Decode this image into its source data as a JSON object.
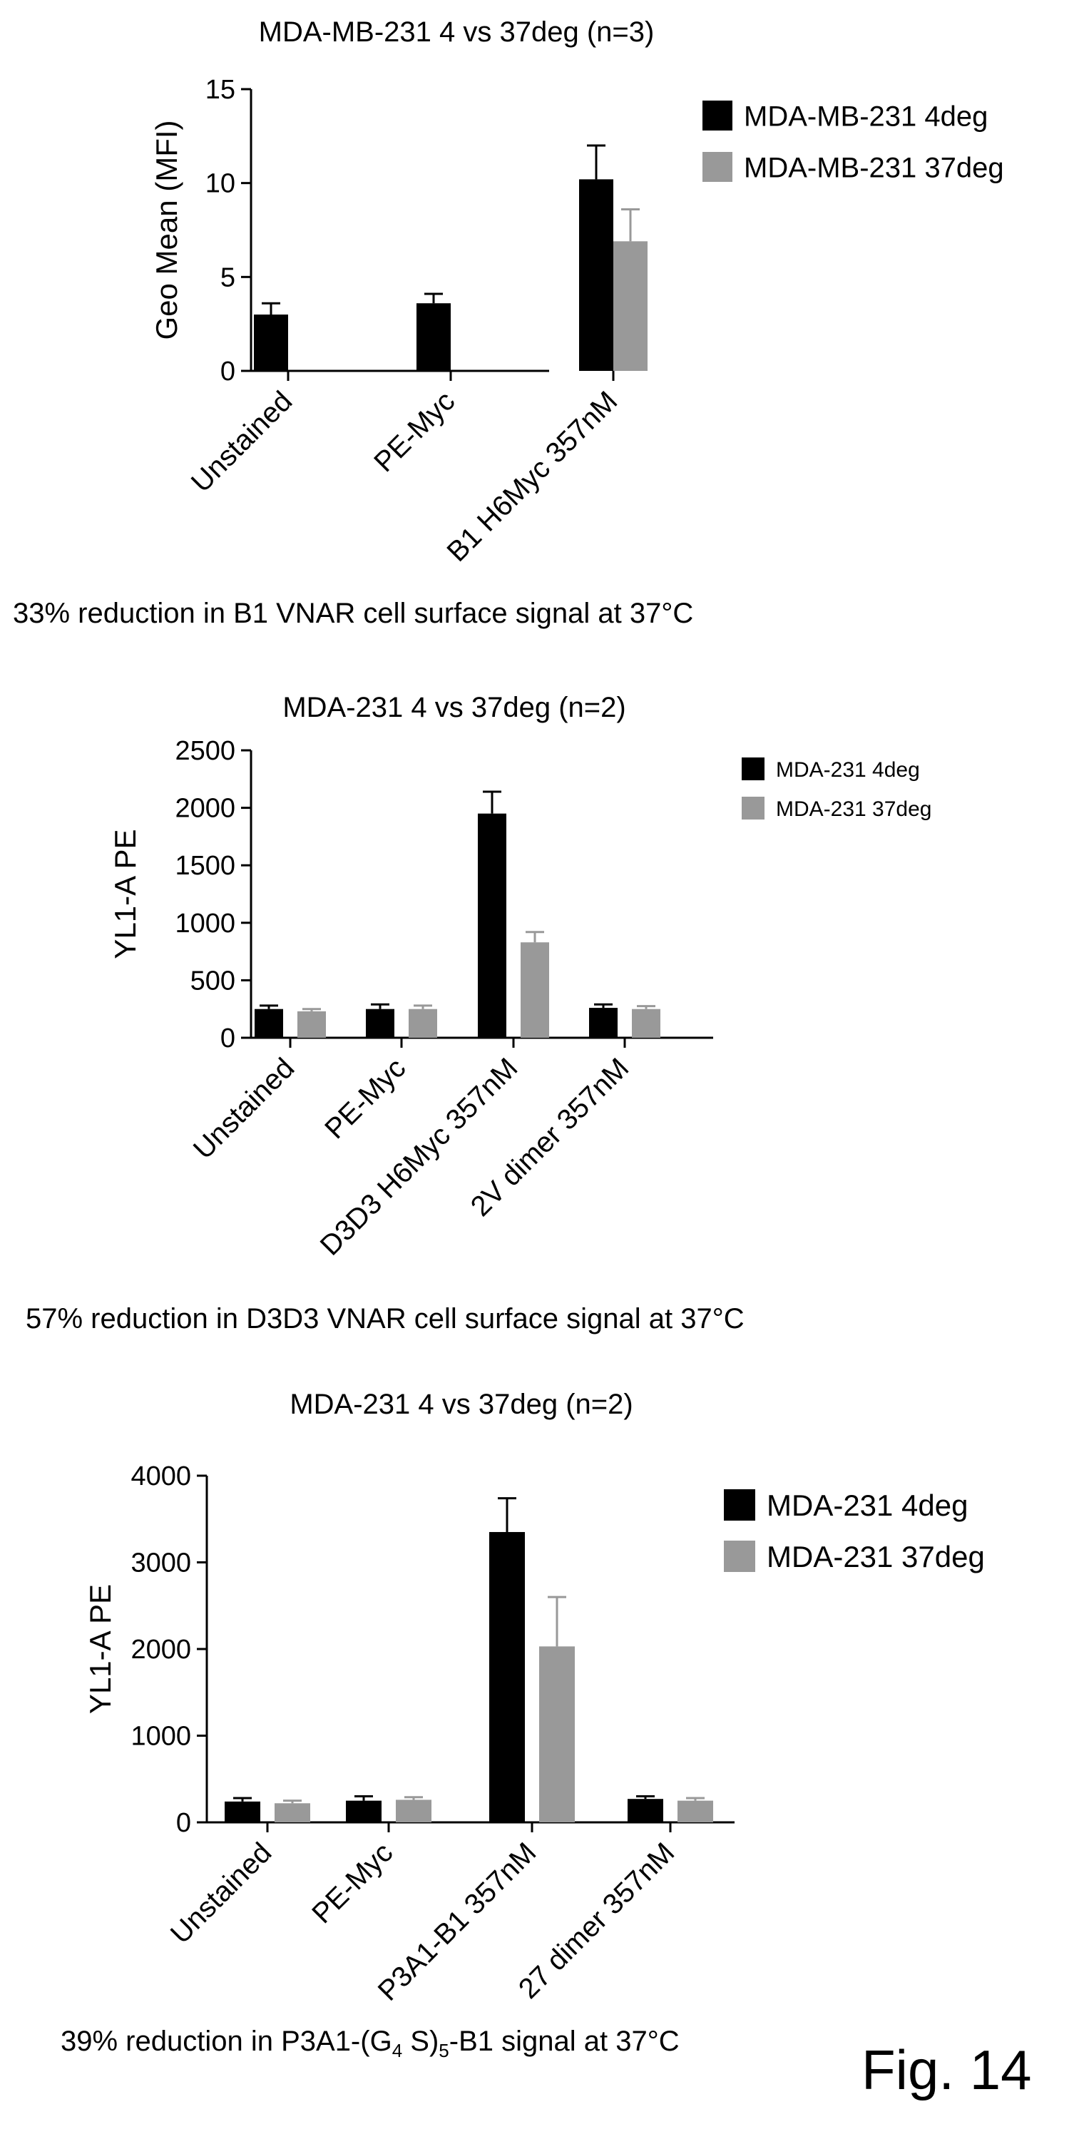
{
  "figure_label": "Fig. 14",
  "captions": [
    "33% reduction in B1 VNAR cell surface signal at 37°C",
    "57% reduction in D3D3 VNAR cell surface signal at 37°C",
    "39% reduction in P3A1-(G4 S)5-B1 signal at 37°C"
  ],
  "colors": {
    "series_4deg": "#000000",
    "series_37deg": "#999999"
  },
  "chart_data": [
    {
      "type": "bar",
      "title": "MDA-MB-231 4 vs 37deg (n=3)",
      "xlabel": "",
      "ylabel": "Geo Mean (MFI)",
      "ylim": [
        0,
        15
      ],
      "yticks": [
        0,
        5,
        10,
        15
      ],
      "grid": false,
      "legend_position": "top-right",
      "categories": [
        "Unstained",
        "PE-Myc",
        "B1 H6Myc 357nM"
      ],
      "series": [
        {
          "name": "MDA-MB-231 4deg",
          "values": [
            3.0,
            3.6,
            10.2
          ],
          "errors": [
            0.6,
            0.5,
            1.8
          ]
        },
        {
          "name": "MDA-MB-231 37deg",
          "values": [
            null,
            null,
            6.9
          ],
          "errors": [
            null,
            null,
            1.7
          ]
        }
      ]
    },
    {
      "type": "bar",
      "title": "MDA-231 4 vs 37deg (n=2)",
      "xlabel": "",
      "ylabel": "YL1-A PE",
      "ylim": [
        0,
        2500
      ],
      "yticks": [
        0,
        500,
        1000,
        1500,
        2000,
        2500
      ],
      "grid": false,
      "legend_position": "top-right",
      "categories": [
        "Unstained",
        "PE-Myc",
        "D3D3 H6Myc 357nM",
        "2V dimer 357nM"
      ],
      "series": [
        {
          "name": "MDA-231 4deg",
          "values": [
            250,
            250,
            1950,
            260
          ],
          "errors": [
            30,
            40,
            190,
            30
          ]
        },
        {
          "name": "MDA-231 37deg",
          "values": [
            230,
            250,
            830,
            250
          ],
          "errors": [
            20,
            30,
            90,
            25
          ]
        }
      ]
    },
    {
      "type": "bar",
      "title": "MDA-231 4 vs 37deg (n=2)",
      "xlabel": "",
      "ylabel": "YL1-A PE",
      "ylim": [
        0,
        4000
      ],
      "yticks": [
        0,
        1000,
        2000,
        3000,
        4000
      ],
      "grid": false,
      "legend_position": "top-right",
      "categories": [
        "Unstained",
        "PE-Myc",
        "P3A1-B1 357nM",
        "27 dimer 357nM"
      ],
      "series": [
        {
          "name": "MDA-231 4deg",
          "values": [
            240,
            250,
            3350,
            270
          ],
          "errors": [
            40,
            50,
            390,
            30
          ]
        },
        {
          "name": "MDA-231 37deg",
          "values": [
            220,
            260,
            2030,
            250
          ],
          "errors": [
            30,
            30,
            570,
            30
          ]
        }
      ]
    }
  ]
}
